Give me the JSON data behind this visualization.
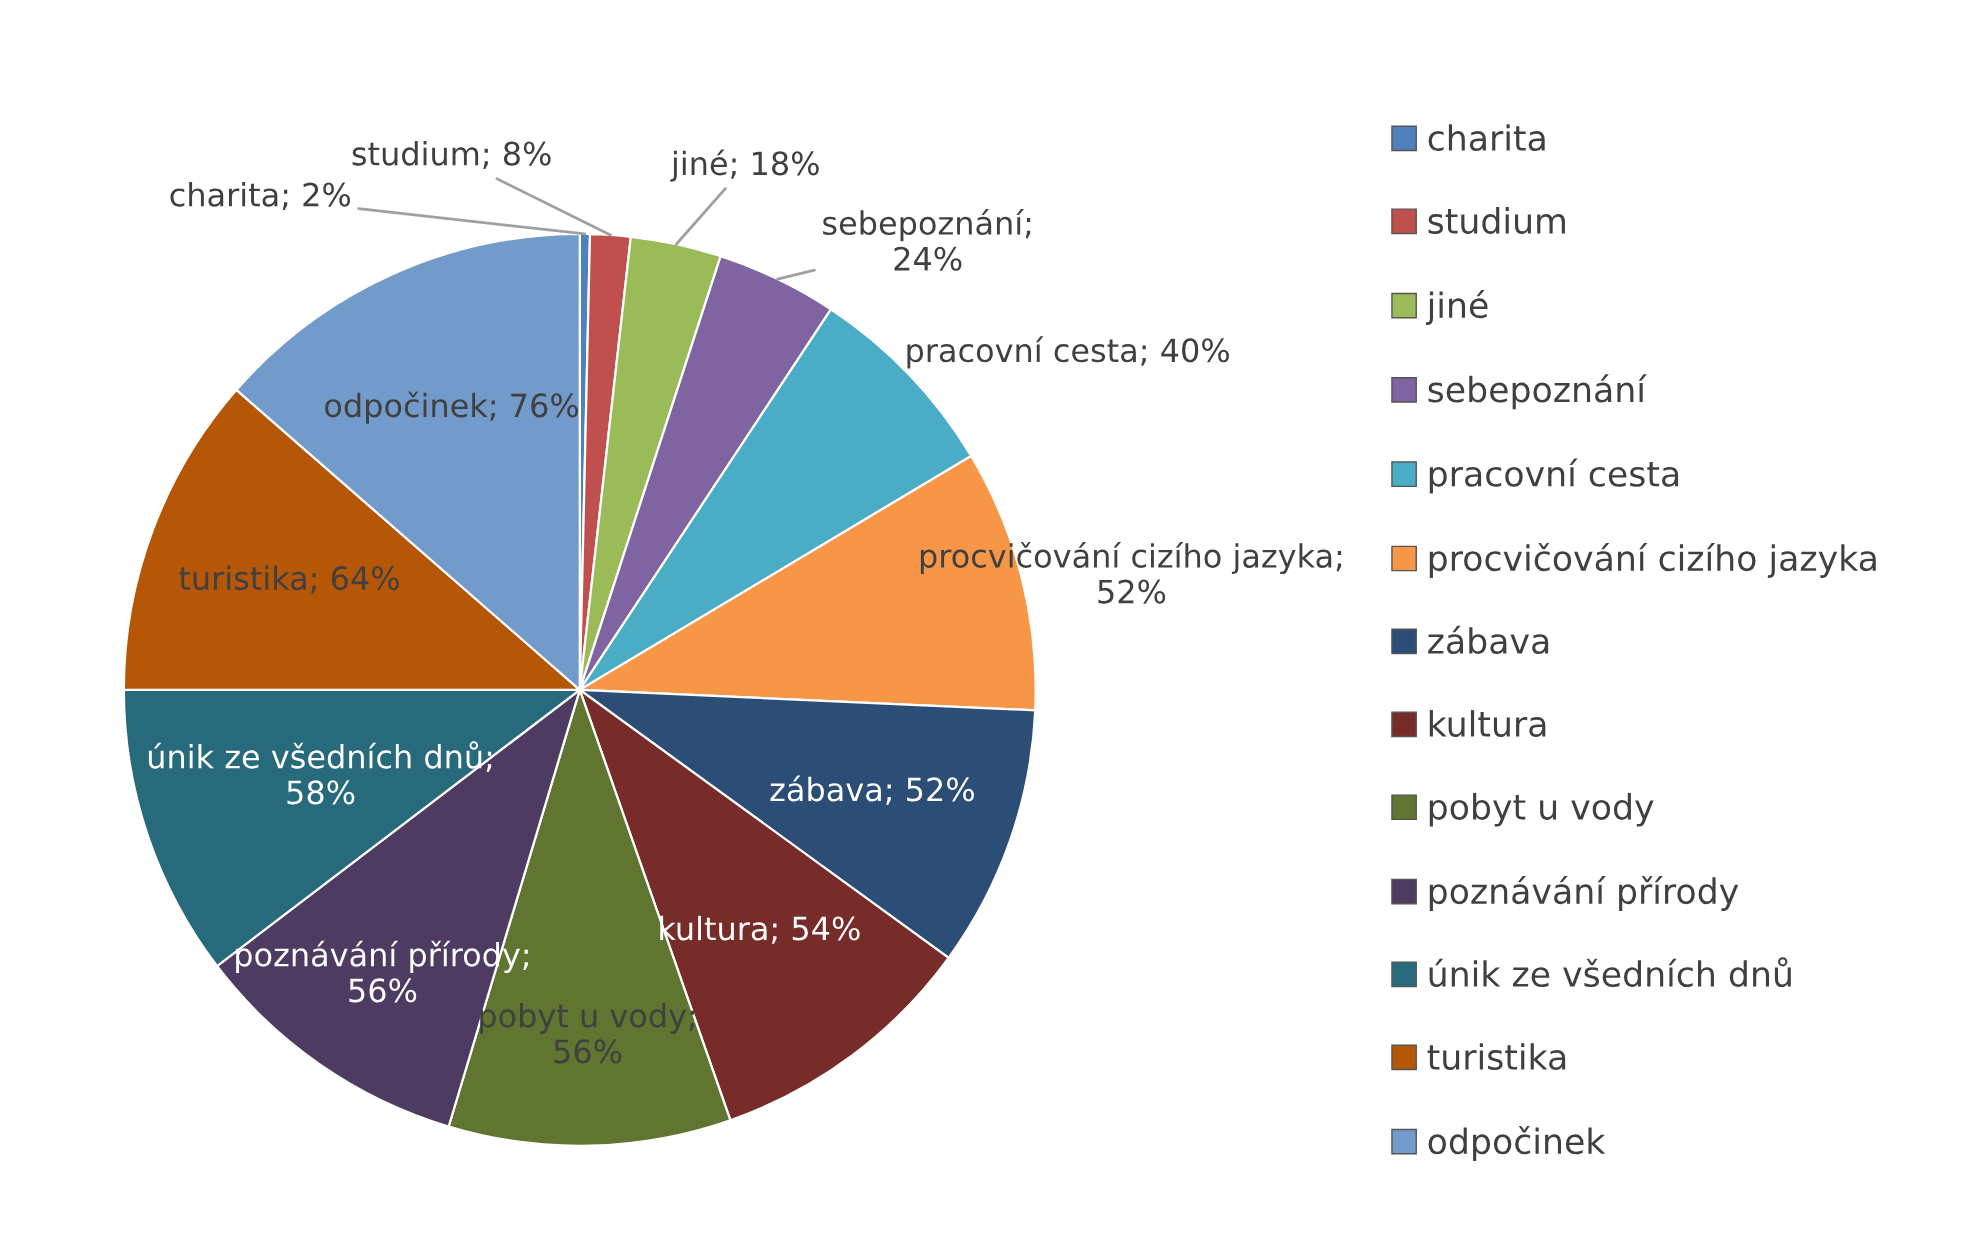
{
  "chart_data": {
    "type": "pie",
    "categories": [
      "charita",
      "studium",
      "jiné",
      "sebepoznání",
      "pracovní cesta",
      "procvičování cizího jazyka",
      "zábava",
      "kultura",
      "pobyt u vody",
      "poznávání přírody",
      "únik ze všedních dnů",
      "turistika",
      "odpočinek"
    ],
    "values": [
      2,
      8,
      18,
      24,
      40,
      52,
      52,
      54,
      56,
      56,
      58,
      64,
      76
    ],
    "value_labels": [
      "charita; 2%",
      "studium; 8%",
      "jiné; 18%",
      "sebepoznání; 24%",
      "pracovní cesta; 40%",
      "procvičování cizího jazyka; 52%",
      "zábava; 52%",
      "kultura; 54%",
      "pobyt u vody; 56%",
      "poznávání přírody; 56%",
      "únik ze všedních dnů; 58%",
      "turistika; 64%",
      "odpočinek; 76%"
    ],
    "colors": [
      "#4f81bd",
      "#c0504d",
      "#9bbb59",
      "#8064a2",
      "#4bacc6",
      "#f79646",
      "#2c4d75",
      "#772c2a",
      "#5f7530",
      "#4d3b62",
      "#276a7c",
      "#b65708",
      "#729aca"
    ],
    "legend": "right"
  }
}
